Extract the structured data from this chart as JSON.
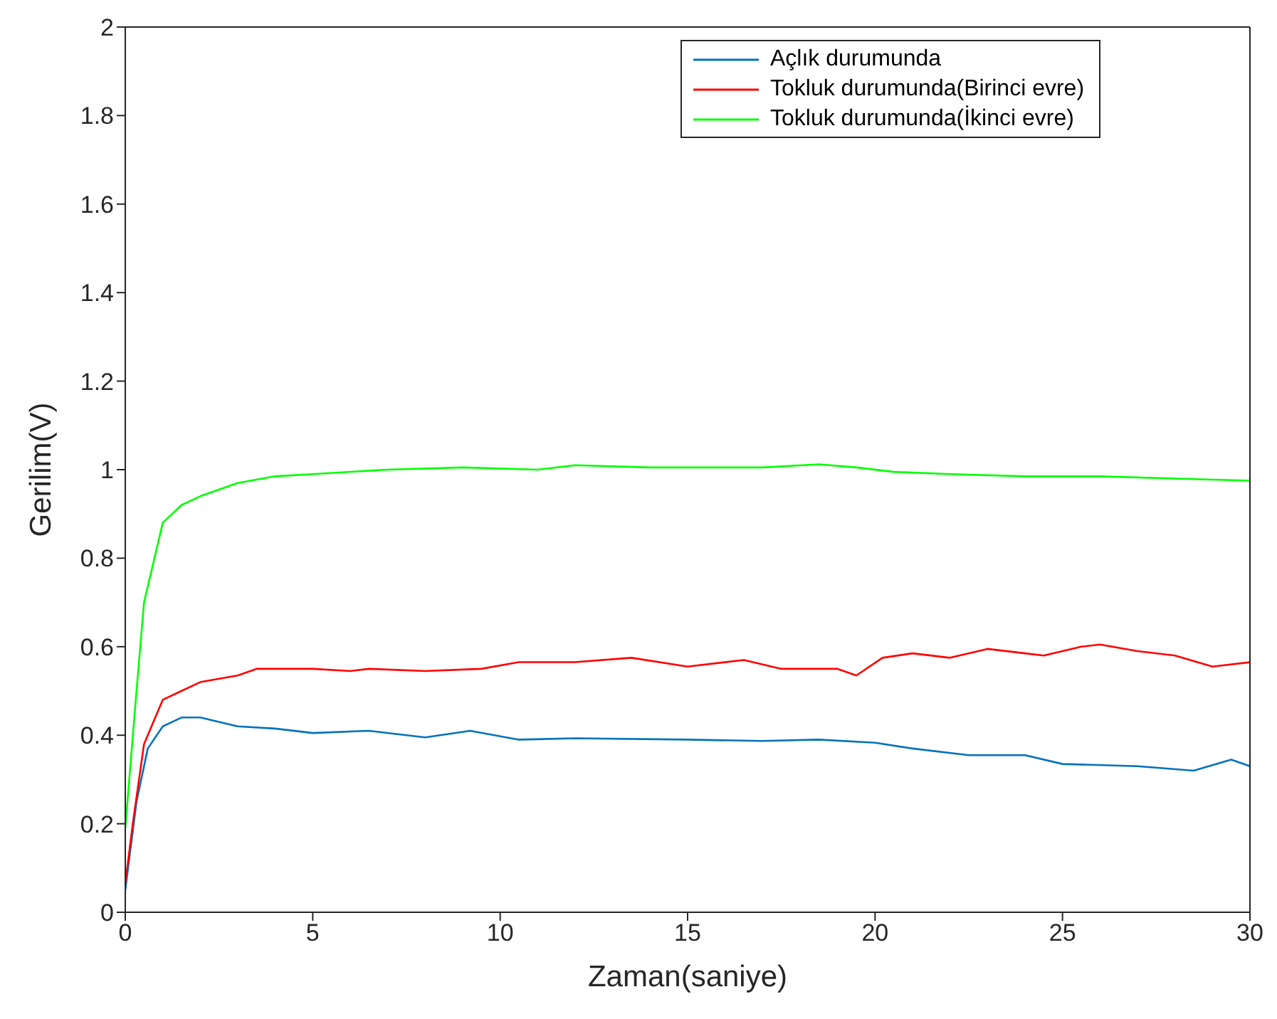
{
  "chart_data": {
    "type": "line",
    "xlabel": "Zaman(saniye)",
    "ylabel": "Gerilim(V)",
    "xlim": [
      0,
      30
    ],
    "ylim": [
      0,
      2
    ],
    "xticks": [
      0,
      5,
      10,
      15,
      20,
      25,
      30
    ],
    "yticks": [
      0,
      0.2,
      0.4,
      0.6,
      0.8,
      1,
      1.2,
      1.4,
      1.6,
      1.8,
      2
    ],
    "grid": false,
    "legend": "top right",
    "marker": "none",
    "line_style": "solid",
    "series": [
      {
        "name": "Açlık durumunda",
        "color": "#0072bd",
        "x": [
          0,
          0.3,
          0.6,
          1,
          1.5,
          2,
          3,
          4,
          5,
          6.5,
          8,
          9.2,
          10.5,
          12,
          15,
          17,
          18.5,
          20,
          21,
          22.5,
          24,
          25,
          27,
          28.5,
          29.5,
          30
        ],
        "values": [
          0.05,
          0.25,
          0.37,
          0.42,
          0.44,
          0.44,
          0.42,
          0.415,
          0.405,
          0.41,
          0.395,
          0.41,
          0.39,
          0.393,
          0.39,
          0.387,
          0.39,
          0.383,
          0.37,
          0.355,
          0.355,
          0.335,
          0.33,
          0.32,
          0.345,
          0.33
        ]
      },
      {
        "name": "Tokluk durumunda(Birinci evre)",
        "color": "#ff0000",
        "x": [
          0,
          0.2,
          0.5,
          1,
          1.5,
          2,
          3,
          3.5,
          5,
          6,
          6.5,
          8,
          9.5,
          10.5,
          12,
          13.5,
          15,
          16.5,
          17.5,
          19,
          19.5,
          20.2,
          21,
          22,
          23,
          24,
          24.5,
          25.5,
          26,
          27,
          28,
          29,
          30
        ],
        "values": [
          0.065,
          0.2,
          0.38,
          0.48,
          0.5,
          0.52,
          0.535,
          0.55,
          0.55,
          0.545,
          0.55,
          0.545,
          0.55,
          0.565,
          0.565,
          0.575,
          0.555,
          0.57,
          0.55,
          0.55,
          0.535,
          0.575,
          0.585,
          0.575,
          0.595,
          0.585,
          0.58,
          0.6,
          0.605,
          0.59,
          0.58,
          0.555,
          0.565
        ]
      },
      {
        "name": "Tokluk durumunda(İkinci evre)",
        "color": "#00ff00",
        "x": [
          0,
          0.3,
          0.5,
          1,
          1.5,
          2,
          3,
          4,
          5,
          7,
          9,
          11,
          12,
          14,
          16,
          17,
          18.5,
          19.5,
          20.5,
          22,
          24,
          26,
          28,
          30
        ],
        "values": [
          0.19,
          0.5,
          0.7,
          0.88,
          0.92,
          0.94,
          0.97,
          0.985,
          0.99,
          1.0,
          1.005,
          1.0,
          1.01,
          1.005,
          1.005,
          1.005,
          1.012,
          1.005,
          0.995,
          0.99,
          0.985,
          0.985,
          0.98,
          0.975
        ]
      }
    ]
  }
}
